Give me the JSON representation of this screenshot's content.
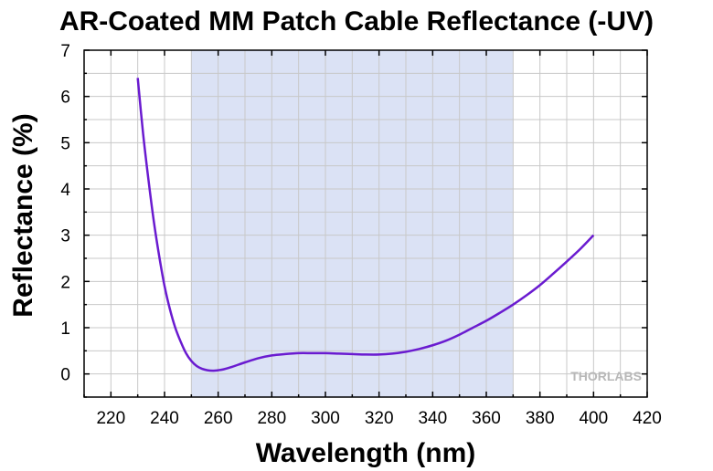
{
  "chart_data": {
    "type": "line",
    "title": "AR-Coated MM Patch Cable Reflectance (-UV)",
    "xlabel": "Wavelength (nm)",
    "ylabel": "Reflectance (%)",
    "xlim": [
      210,
      420
    ],
    "ylim": [
      -0.5,
      7
    ],
    "x_ticks": [
      220,
      240,
      260,
      280,
      300,
      320,
      340,
      360,
      380,
      400,
      420
    ],
    "y_ticks": [
      0,
      1,
      2,
      3,
      4,
      5,
      6,
      7
    ],
    "grid": true,
    "shaded_band": {
      "x_range": [
        250,
        370
      ],
      "color": "#dbe2f5"
    },
    "series": [
      {
        "color": "#6a1bd0",
        "x": [
          230,
          232,
          234,
          236,
          238,
          240,
          242,
          244,
          246,
          248,
          250,
          252,
          254,
          256,
          258,
          260,
          262,
          265,
          270,
          275,
          280,
          285,
          290,
          295,
          300,
          305,
          310,
          315,
          320,
          325,
          330,
          335,
          340,
          345,
          350,
          355,
          360,
          365,
          370,
          375,
          380,
          385,
          390,
          395,
          400
        ],
        "y": [
          6.4,
          5.2,
          4.2,
          3.3,
          2.55,
          1.9,
          1.4,
          1.0,
          0.7,
          0.45,
          0.28,
          0.17,
          0.11,
          0.08,
          0.07,
          0.08,
          0.1,
          0.15,
          0.25,
          0.34,
          0.4,
          0.43,
          0.45,
          0.45,
          0.45,
          0.44,
          0.43,
          0.42,
          0.42,
          0.44,
          0.48,
          0.54,
          0.62,
          0.72,
          0.85,
          1.0,
          1.15,
          1.32,
          1.5,
          1.7,
          1.92,
          2.17,
          2.43,
          2.7,
          3.0
        ]
      }
    ]
  },
  "watermark": "THORLABS"
}
